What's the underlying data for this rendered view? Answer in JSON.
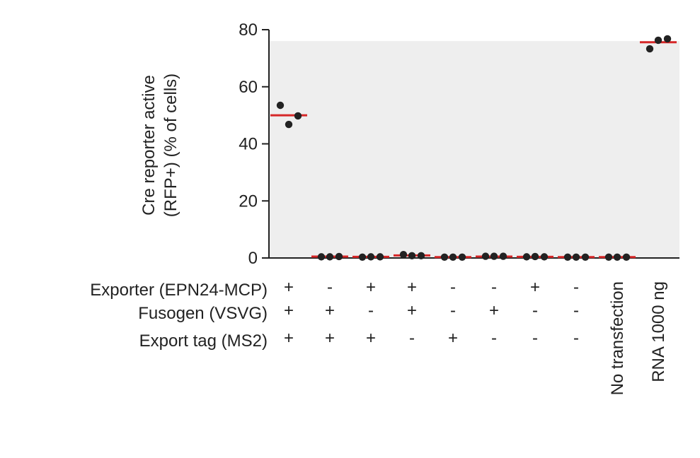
{
  "chart_data": {
    "type": "scatter",
    "ylabel_lines": [
      "Cre reporter active",
      "(RFP+) (% of cells)"
    ],
    "ylim": [
      0,
      80
    ],
    "yticks": [
      "0",
      "20",
      "40",
      "60",
      "80"
    ],
    "background_band": [
      0,
      76
    ],
    "colors": {
      "band": "#eeeeee",
      "point": "#222222",
      "mean": "#d62728",
      "axis": "#222222"
    },
    "condition_rows": [
      {
        "label": "Exporter (EPN24-MCP)",
        "values": [
          "+",
          "-",
          "+",
          "+",
          "-",
          "-",
          "+",
          "-"
        ]
      },
      {
        "label": "Fusogen (VSVG)",
        "values": [
          "+",
          "+",
          "-",
          "+",
          "-",
          "+",
          "-",
          "-"
        ]
      },
      {
        "label": "Export tag (MS2)",
        "values": [
          "+",
          "+",
          "+",
          "-",
          "+",
          "-",
          "-",
          "-"
        ]
      }
    ],
    "extra_categories": [
      "No transfection",
      "RNA 1000 ng"
    ],
    "groups": [
      {
        "mean": 50.0,
        "points": [
          53.5,
          46.8,
          49.8
        ]
      },
      {
        "mean": 0.5,
        "points": [
          0.4,
          0.4,
          0.5
        ]
      },
      {
        "mean": 0.4,
        "points": [
          0.3,
          0.4,
          0.4
        ]
      },
      {
        "mean": 0.9,
        "points": [
          1.2,
          0.8,
          0.8
        ]
      },
      {
        "mean": 0.3,
        "points": [
          0.3,
          0.3,
          0.3
        ]
      },
      {
        "mean": 0.5,
        "points": [
          0.6,
          0.6,
          0.6
        ]
      },
      {
        "mean": 0.4,
        "points": [
          0.4,
          0.5,
          0.4
        ]
      },
      {
        "mean": 0.3,
        "points": [
          0.3,
          0.3,
          0.3
        ]
      },
      {
        "mean": 0.3,
        "points": [
          0.3,
          0.3,
          0.3
        ]
      },
      {
        "mean": 75.6,
        "points": [
          73.3,
          76.3,
          76.8
        ]
      }
    ]
  }
}
